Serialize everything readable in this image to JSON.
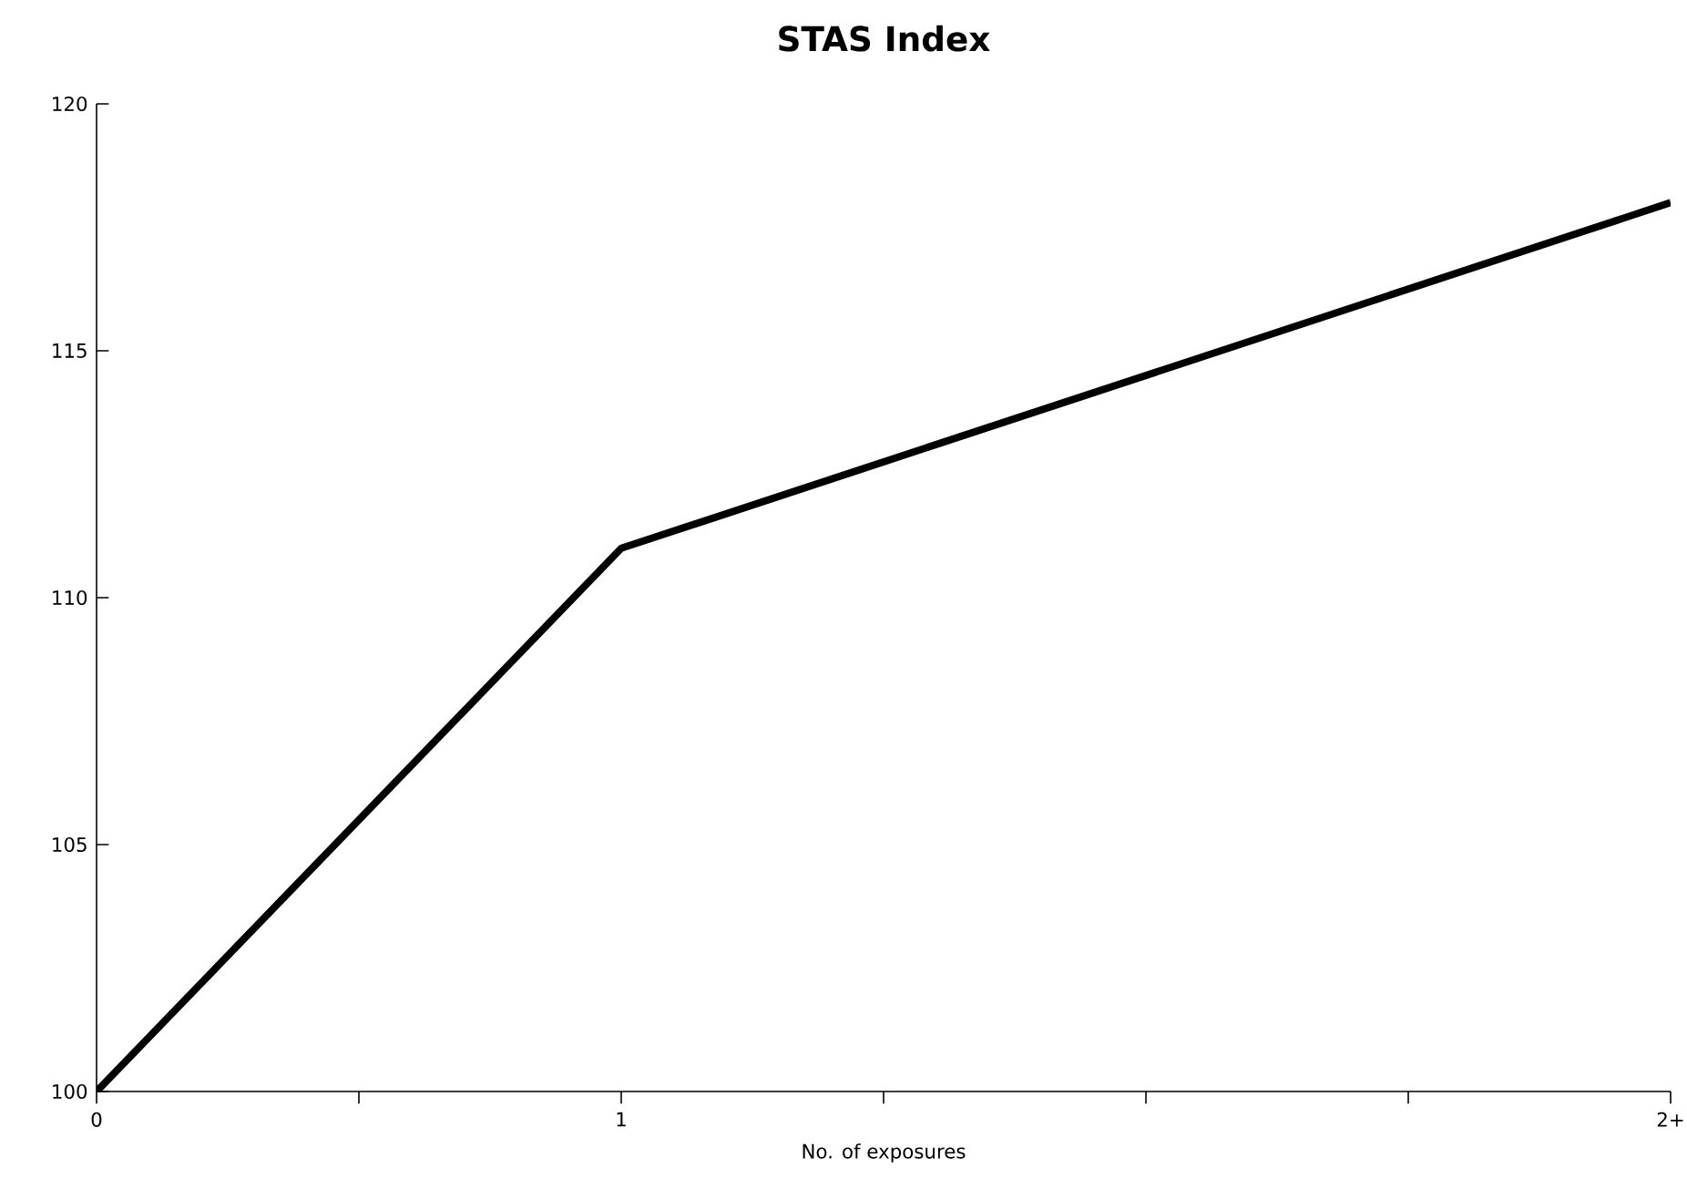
{
  "chart_data": {
    "type": "line",
    "title": "STAS Index",
    "xlabel": "No. of exposures",
    "x": [
      0,
      1,
      3
    ],
    "series": [
      {
        "color": "#000000",
        "values": [
          100,
          111,
          118
        ]
      }
    ],
    "xlim": [
      0,
      3
    ],
    "xticks": [
      {
        "value": 0,
        "label": "0"
      },
      {
        "value": 0.5,
        "label": null
      },
      {
        "value": 1,
        "label": "1"
      },
      {
        "value": 1.5,
        "label": null
      },
      {
        "value": 2,
        "label": null
      },
      {
        "value": 2.5,
        "label": null
      },
      {
        "value": 3,
        "label": "2+"
      }
    ],
    "ylim": [
      100,
      120
    ],
    "yticks": [
      100,
      105,
      110,
      115,
      120
    ],
    "grid": false,
    "legend": false,
    "marker": "none",
    "line_style": "solid"
  }
}
